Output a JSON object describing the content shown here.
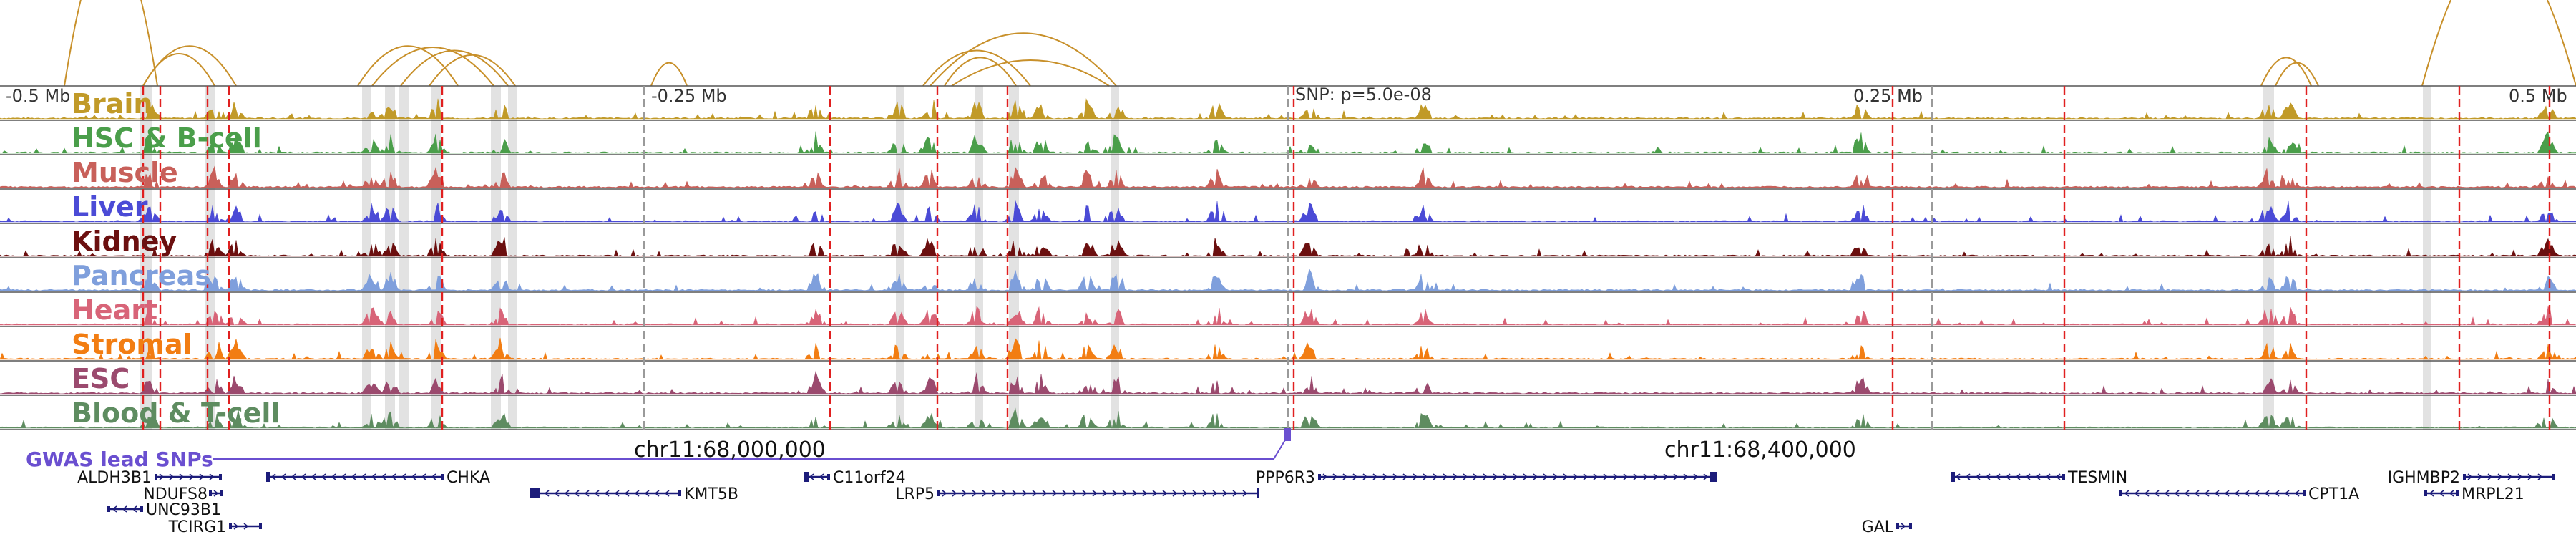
{
  "scale_labels": [
    "-0.5 Mb",
    "-0.25 Mb",
    "0.25 Mb",
    "0.5 Mb"
  ],
  "snp_label": "SNP: p=5.0e-08",
  "gwas_label": "GWAS lead SNPs",
  "coordinate_labels": [
    "chr11:68,000,000",
    "chr11:68,400,000"
  ],
  "tracks": [
    {
      "name": "Brain",
      "color": "#c19a28"
    },
    {
      "name": "HSC & B-cell",
      "color": "#4a9e4a"
    },
    {
      "name": "Muscle",
      "color": "#c8605a"
    },
    {
      "name": "Liver",
      "color": "#4b4bd6"
    },
    {
      "name": "Kidney",
      "color": "#6b0f0f"
    },
    {
      "name": "Pancreas",
      "color": "#7f9fdc"
    },
    {
      "name": "Heart",
      "color": "#d86478"
    },
    {
      "name": "Stromal",
      "color": "#f27d12"
    },
    {
      "name": "ESC",
      "color": "#9b4a6e"
    },
    {
      "name": "Blood & T-cell",
      "color": "#5e8c60"
    }
  ],
  "genes": [
    {
      "name": "ALDH3B1",
      "strand": "+"
    },
    {
      "name": "NDUFS8",
      "strand": "+"
    },
    {
      "name": "UNC93B1",
      "strand": "-"
    },
    {
      "name": "TCIRG1",
      "strand": "+"
    },
    {
      "name": "CHKA",
      "strand": "-"
    },
    {
      "name": "KMT5B",
      "strand": "-"
    },
    {
      "name": "C11orf24",
      "strand": "-"
    },
    {
      "name": "LRP5",
      "strand": "+"
    },
    {
      "name": "PPP6R3",
      "strand": "+"
    },
    {
      "name": "GAL",
      "strand": "+"
    },
    {
      "name": "TESMIN",
      "strand": "-"
    },
    {
      "name": "CPT1A",
      "strand": "-"
    },
    {
      "name": "IGHMBP2",
      "strand": "+"
    },
    {
      "name": "MRPL21",
      "strand": "-"
    }
  ],
  "colors": {
    "arc": "#c8902a",
    "snp_line": "#e02020",
    "gwas": "#6a4fd0",
    "gene": "#1c1c7a",
    "highlight": "#d8d8d8"
  }
}
